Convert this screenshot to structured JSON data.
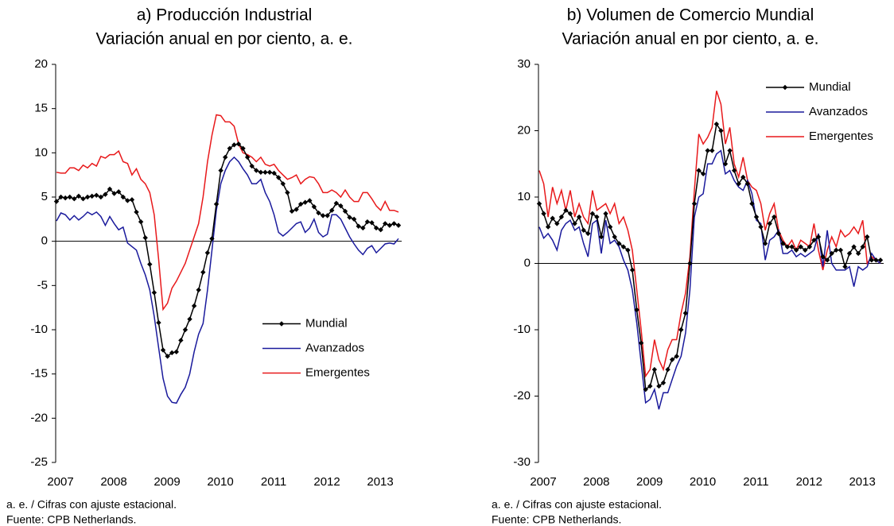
{
  "chart_data": [
    {
      "type": "line",
      "title": "a) Producción Industrial",
      "subtitle": "Variación anual en por ciento, a. e.",
      "notes": [
        "a. e. / Cifras con ajuste estacional.",
        "Fuente: CPB Netherlands."
      ],
      "legend": "center right",
      "categories": [
        "2007",
        null,
        null,
        null,
        null,
        null,
        null,
        null,
        null,
        null,
        null,
        null,
        "2008",
        null,
        null,
        null,
        null,
        null,
        null,
        null,
        null,
        null,
        null,
        null,
        "2009",
        null,
        null,
        null,
        null,
        null,
        null,
        null,
        null,
        null,
        null,
        null,
        "2010",
        null,
        null,
        null,
        null,
        null,
        null,
        null,
        null,
        null,
        null,
        null,
        "2011",
        null,
        null,
        null,
        null,
        null,
        null,
        null,
        null,
        null,
        null,
        null,
        "2012",
        null,
        null,
        null,
        null,
        null,
        null,
        null,
        null,
        null,
        null,
        null,
        "2013",
        null,
        null,
        null,
        null,
        null
      ],
      "ylim": [
        -25,
        20
      ],
      "yticks": [
        -25,
        -20,
        -15,
        -10,
        -5,
        0,
        5,
        10,
        15,
        20
      ],
      "series": [
        {
          "name": "Mundial",
          "color": "#000000",
          "marker": "diamond",
          "values": [
            4.5,
            5.0,
            4.9,
            5.0,
            4.8,
            5.1,
            4.8,
            5.0,
            5.1,
            5.2,
            5.0,
            5.3,
            5.9,
            5.4,
            5.6,
            5.0,
            4.6,
            4.7,
            3.3,
            2.2,
            0.4,
            -2.6,
            -5.8,
            -9.2,
            -12.3,
            -13.0,
            -12.6,
            -12.5,
            -11.2,
            -10.0,
            -8.8,
            -7.3,
            -5.5,
            -3.5,
            -1.3,
            0.3,
            4.2,
            8.0,
            9.5,
            10.5,
            10.9,
            11.0,
            10.5,
            9.5,
            8.5,
            8.0,
            7.8,
            7.8,
            7.8,
            7.7,
            7.2,
            6.5,
            5.5,
            3.4,
            3.6,
            4.2,
            4.4,
            4.6,
            3.9,
            3.2,
            2.9,
            2.9,
            3.5,
            4.3,
            4.0,
            3.4,
            2.7,
            2.5,
            1.7,
            1.5,
            2.2,
            2.1,
            1.5,
            1.3,
            2.0,
            1.8,
            2.0,
            1.8
          ]
        },
        {
          "name": "Avanzados",
          "color": "#1a1a9c",
          "values": [
            2.3,
            3.2,
            3.0,
            2.4,
            2.9,
            2.4,
            2.8,
            3.3,
            3.0,
            3.3,
            2.8,
            1.8,
            2.8,
            2.0,
            1.3,
            1.6,
            -0.2,
            -0.6,
            -1.0,
            -2.5,
            -3.8,
            -5.5,
            -8.5,
            -12.0,
            -15.5,
            -17.5,
            -18.2,
            -18.3,
            -17.3,
            -16.5,
            -15.0,
            -12.5,
            -10.5,
            -9.3,
            -5.5,
            -1.0,
            3.5,
            6.5,
            8.0,
            9.0,
            9.5,
            9.0,
            8.2,
            7.5,
            6.5,
            6.5,
            7.0,
            5.5,
            4.5,
            3.0,
            1.0,
            0.6,
            1.0,
            1.5,
            2.0,
            2.2,
            1.0,
            1.5,
            2.5,
            1.0,
            0.5,
            0.8,
            3.0,
            3.0,
            2.5,
            1.5,
            0.5,
            -0.3,
            -1.0,
            -1.5,
            -0.8,
            -0.5,
            -1.3,
            -0.8,
            -0.3,
            -0.2,
            -0.3,
            0.3
          ]
        },
        {
          "name": "Emergentes",
          "color": "#e8191b",
          "values": [
            7.8,
            7.7,
            7.7,
            8.3,
            8.3,
            8.0,
            8.6,
            8.3,
            8.8,
            8.5,
            9.6,
            9.4,
            9.8,
            9.8,
            10.2,
            9.0,
            8.8,
            7.5,
            8.2,
            7.0,
            6.5,
            5.5,
            3.0,
            -2.0,
            -7.7,
            -7.0,
            -5.3,
            -4.5,
            -3.5,
            -2.5,
            -1.0,
            0.5,
            2.0,
            5.0,
            9.0,
            12.0,
            14.3,
            14.2,
            13.5,
            13.5,
            13.0,
            11.0,
            10.0,
            9.8,
            9.5,
            9.0,
            9.5,
            8.7,
            8.5,
            8.7,
            8.0,
            7.5,
            7.0,
            7.2,
            7.5,
            6.5,
            7.0,
            7.3,
            7.2,
            6.5,
            5.5,
            5.5,
            5.8,
            5.5,
            5.0,
            5.8,
            5.0,
            4.5,
            4.5,
            5.5,
            5.5,
            4.8,
            4.0,
            3.5,
            4.5,
            3.5,
            3.5,
            3.3
          ]
        }
      ]
    },
    {
      "type": "line",
      "title": "b) Volumen de Comercio Mundial",
      "subtitle": "Variación anual en por ciento, a. e.",
      "notes": [
        "a. e. / Cifras con ajuste estacional.",
        "Fuente: CPB Netherlands."
      ],
      "legend": "upper right",
      "categories": [
        "2007",
        null,
        null,
        null,
        null,
        null,
        null,
        null,
        null,
        null,
        null,
        null,
        "2008",
        null,
        null,
        null,
        null,
        null,
        null,
        null,
        null,
        null,
        null,
        null,
        "2009",
        null,
        null,
        null,
        null,
        null,
        null,
        null,
        null,
        null,
        null,
        null,
        "2010",
        null,
        null,
        null,
        null,
        null,
        null,
        null,
        null,
        null,
        null,
        null,
        "2011",
        null,
        null,
        null,
        null,
        null,
        null,
        null,
        null,
        null,
        null,
        null,
        "2012",
        null,
        null,
        null,
        null,
        null,
        null,
        null,
        null,
        null,
        null,
        null,
        "2013",
        null,
        null,
        null,
        null,
        null
      ],
      "ylim": [
        -30,
        30
      ],
      "yticks": [
        -30,
        -20,
        -10,
        0,
        10,
        20,
        30
      ],
      "series": [
        {
          "name": "Mundial",
          "color": "#000000",
          "marker": "diamond",
          "values": [
            9.0,
            7.5,
            5.5,
            6.8,
            6.0,
            7.0,
            8.0,
            7.5,
            6.0,
            7.0,
            5.0,
            4.5,
            7.5,
            7.0,
            4.0,
            7.5,
            5.5,
            4.0,
            3.0,
            2.5,
            2.0,
            -1.0,
            -7.0,
            -12.0,
            -19.0,
            -18.5,
            -16.0,
            -18.5,
            -18.0,
            -16.0,
            -14.5,
            -14.0,
            -10.0,
            -7.5,
            0.0,
            9.0,
            14.0,
            13.5,
            17.0,
            17.0,
            21.0,
            20.0,
            15.0,
            17.0,
            14.0,
            12.0,
            13.0,
            12.0,
            9.0,
            7.0,
            5.5,
            3.0,
            6.0,
            7.0,
            4.5,
            3.0,
            2.5,
            2.5,
            2.0,
            2.5,
            2.0,
            2.5,
            3.5,
            4.0,
            1.0,
            0.5,
            1.5,
            2.0,
            2.0,
            -0.5,
            1.5,
            2.5,
            1.5,
            2.5,
            4.0,
            0.5,
            0.5,
            0.5
          ]
        },
        {
          "name": "Avanzados",
          "color": "#1a1a9c",
          "values": [
            5.5,
            3.8,
            4.5,
            3.5,
            2.0,
            5.0,
            6.0,
            6.5,
            5.0,
            5.5,
            3.0,
            1.0,
            6.0,
            6.5,
            1.5,
            6.5,
            3.0,
            3.5,
            2.5,
            0.5,
            -1.0,
            -4.0,
            -9.0,
            -15.0,
            -21.0,
            -20.5,
            -19.0,
            -22.0,
            -19.5,
            -19.5,
            -17.5,
            -15.5,
            -14.0,
            -10.5,
            -4.0,
            7.0,
            10.0,
            10.5,
            15.0,
            15.0,
            16.5,
            17.0,
            13.5,
            14.0,
            12.5,
            11.5,
            11.0,
            12.5,
            10.5,
            6.5,
            6.0,
            0.5,
            3.5,
            4.0,
            5.0,
            1.5,
            1.5,
            2.0,
            1.0,
            1.5,
            1.0,
            1.5,
            2.0,
            4.5,
            -0.5,
            5.0,
            0.0,
            -1.0,
            -1.0,
            -1.0,
            -0.5,
            -3.5,
            -0.5,
            -1.0,
            -0.5,
            1.5,
            0.5,
            0.0
          ]
        },
        {
          "name": "Emergentes",
          "color": "#e8191b",
          "values": [
            14.0,
            12.0,
            7.0,
            11.5,
            9.0,
            11.0,
            8.0,
            11.0,
            7.0,
            9.0,
            7.0,
            6.0,
            11.0,
            8.0,
            8.5,
            9.0,
            7.5,
            9.0,
            6.0,
            7.0,
            5.0,
            2.0,
            -4.0,
            -10.0,
            -17.0,
            -16.0,
            -11.5,
            -14.5,
            -16.0,
            -13.0,
            -11.5,
            -11.5,
            -7.5,
            -4.5,
            1.0,
            11.0,
            19.5,
            18.0,
            19.0,
            20.5,
            26.0,
            24.0,
            18.0,
            20.5,
            15.0,
            13.0,
            16.0,
            12.5,
            11.5,
            11.0,
            9.0,
            5.0,
            7.5,
            9.0,
            5.0,
            3.5,
            2.5,
            3.5,
            2.0,
            3.5,
            3.0,
            2.5,
            6.0,
            2.0,
            -1.0,
            2.0,
            4.0,
            2.5,
            5.0,
            4.0,
            4.5,
            5.5,
            4.5,
            6.5,
            0.0,
            1.0,
            0.5,
            0.0
          ]
        }
      ]
    }
  ]
}
